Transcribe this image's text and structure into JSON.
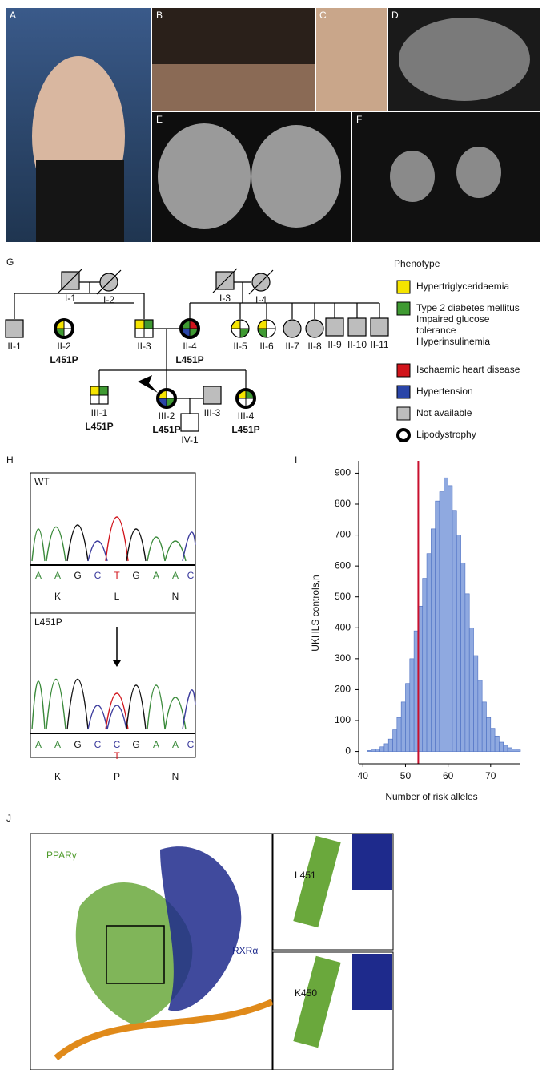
{
  "panel_labels": [
    "A",
    "B",
    "C",
    "D",
    "E",
    "F",
    "G",
    "H",
    "I",
    "J"
  ],
  "pedigree": {
    "individuals": [
      {
        "id": "I-1",
        "shape": "square",
        "fill": "#bdbdbd",
        "deceased": true
      },
      {
        "id": "I-2",
        "shape": "circle",
        "fill": "#bdbdbd",
        "deceased": true
      },
      {
        "id": "I-3",
        "shape": "square",
        "fill": "#bdbdbd",
        "deceased": true
      },
      {
        "id": "I-4",
        "shape": "circle",
        "fill": "#bdbdbd",
        "deceased": true
      },
      {
        "id": "II-1",
        "shape": "square",
        "fill": "#bdbdbd"
      },
      {
        "id": "II-2",
        "shape": "circle",
        "lipodystrophy": true,
        "quadrants": [
          "#f5e400",
          "#ffffff",
          "#ffffff",
          "#3f9a32"
        ],
        "genotype": "L451P"
      },
      {
        "id": "II-3",
        "shape": "square",
        "quadrants": [
          "#f5e400",
          "#3f9a32",
          "#ffffff",
          "#ffffff"
        ]
      },
      {
        "id": "II-4",
        "shape": "circle",
        "lipodystrophy": true,
        "quadrants": [
          "#3f9a32",
          "#d1141b",
          "#3f9a32",
          "#2a45a8"
        ],
        "genotype": "L451P"
      },
      {
        "id": "II-5",
        "shape": "circle",
        "quadrants": [
          "#f5e400",
          "#ffffff",
          "#3f9a32",
          "#ffffff"
        ]
      },
      {
        "id": "II-6",
        "shape": "circle",
        "quadrants": [
          "#f5e400",
          "#ffffff",
          "#ffffff",
          "#3f9a32"
        ]
      },
      {
        "id": "II-7",
        "shape": "circle",
        "fill": "#bdbdbd"
      },
      {
        "id": "II-8",
        "shape": "circle",
        "fill": "#bdbdbd"
      },
      {
        "id": "II-9",
        "shape": "square",
        "fill": "#bdbdbd"
      },
      {
        "id": "II-10",
        "shape": "square",
        "fill": "#bdbdbd"
      },
      {
        "id": "II-11",
        "shape": "square",
        "fill": "#bdbdbd"
      },
      {
        "id": "III-1",
        "shape": "square",
        "quadrants": [
          "#f5e400",
          "#3f9a32",
          "#ffffff",
          "#ffffff"
        ],
        "genotype": "L451P"
      },
      {
        "id": "III-2",
        "shape": "circle",
        "lipodystrophy": true,
        "quadrants": [
          "#f5e400",
          "#ffffff",
          "#3f9a32",
          "#2a45a8"
        ],
        "genotype": "L451P"
      },
      {
        "id": "III-3",
        "shape": "square",
        "fill": "#bdbdbd"
      },
      {
        "id": "III-4",
        "shape": "circle",
        "lipodystrophy": true,
        "quadrants": [
          "#f5e400",
          "#3f9a32",
          "#ffffff",
          "#ffffff"
        ],
        "genotype": "L451P"
      },
      {
        "id": "IV-1",
        "shape": "square",
        "fill": "#ffffff"
      }
    ],
    "legend": {
      "title": "Phenotype",
      "items": [
        {
          "lines": [
            "Hypertriglyceridaemia"
          ],
          "color": "#f5e400"
        },
        {
          "lines": [
            "Type 2 diabetes mellitus",
            "Impaired glucose",
            "tolerance",
            "Hyperinsulinemia"
          ],
          "color": "#3f9a32"
        },
        {
          "lines": [
            "Ischaemic heart disease"
          ],
          "color": "#d1141b"
        },
        {
          "lines": [
            "Hypertension"
          ],
          "color": "#2a45a8"
        },
        {
          "lines": [
            "Not available"
          ],
          "color": "#bdbdbd"
        },
        {
          "lines": [
            "Lipodystrophy"
          ],
          "color": "#ffffff",
          "ring": true
        }
      ]
    }
  },
  "chromatograms": [
    {
      "label": "WT",
      "bases": [
        "A",
        "A",
        "G",
        "C",
        "T",
        "G",
        "A",
        "A",
        "C"
      ],
      "amino_acids": [
        "K",
        "L",
        "N"
      ]
    },
    {
      "label": "L451P",
      "bases": [
        "A",
        "A",
        "G",
        "C",
        "C",
        "G",
        "A",
        "A",
        "C"
      ],
      "second_base": "T",
      "amino_acids": [
        "K",
        "P",
        "N"
      ]
    }
  ],
  "base_colors": {
    "A": "#3a8a3a",
    "G": "#111111",
    "C": "#3b3b9c",
    "T": "#d1141b"
  },
  "chart_data": {
    "type": "histogram",
    "ylabel": "UKHLS controls,n",
    "xlabel": "Number of risk alleles",
    "bins": [
      41,
      42,
      43,
      44,
      45,
      46,
      47,
      48,
      49,
      50,
      51,
      52,
      53,
      54,
      55,
      56,
      57,
      58,
      59,
      60,
      61,
      62,
      63,
      64,
      65,
      66,
      67,
      68,
      69,
      70,
      71,
      72,
      73,
      74,
      75,
      76,
      77
    ],
    "counts": [
      3,
      5,
      8,
      15,
      25,
      40,
      70,
      110,
      160,
      220,
      300,
      390,
      470,
      560,
      640,
      720,
      810,
      840,
      885,
      860,
      780,
      700,
      610,
      510,
      400,
      310,
      230,
      160,
      110,
      75,
      50,
      30,
      20,
      12,
      8,
      5
    ],
    "color": "#8fa9e0",
    "edge_color": "#4c6fc2",
    "reference_line_x": 53,
    "reference_color": "#c8102e",
    "xlim": [
      39,
      77
    ],
    "xticks": [
      40,
      50,
      60,
      70
    ],
    "ylim": [
      -40,
      940
    ],
    "yticks": [
      0,
      100,
      200,
      300,
      400,
      500,
      600,
      700,
      800,
      900
    ]
  },
  "structure": {
    "labels": [
      "PPARγ",
      "RXRα",
      "L451",
      "K450"
    ]
  }
}
